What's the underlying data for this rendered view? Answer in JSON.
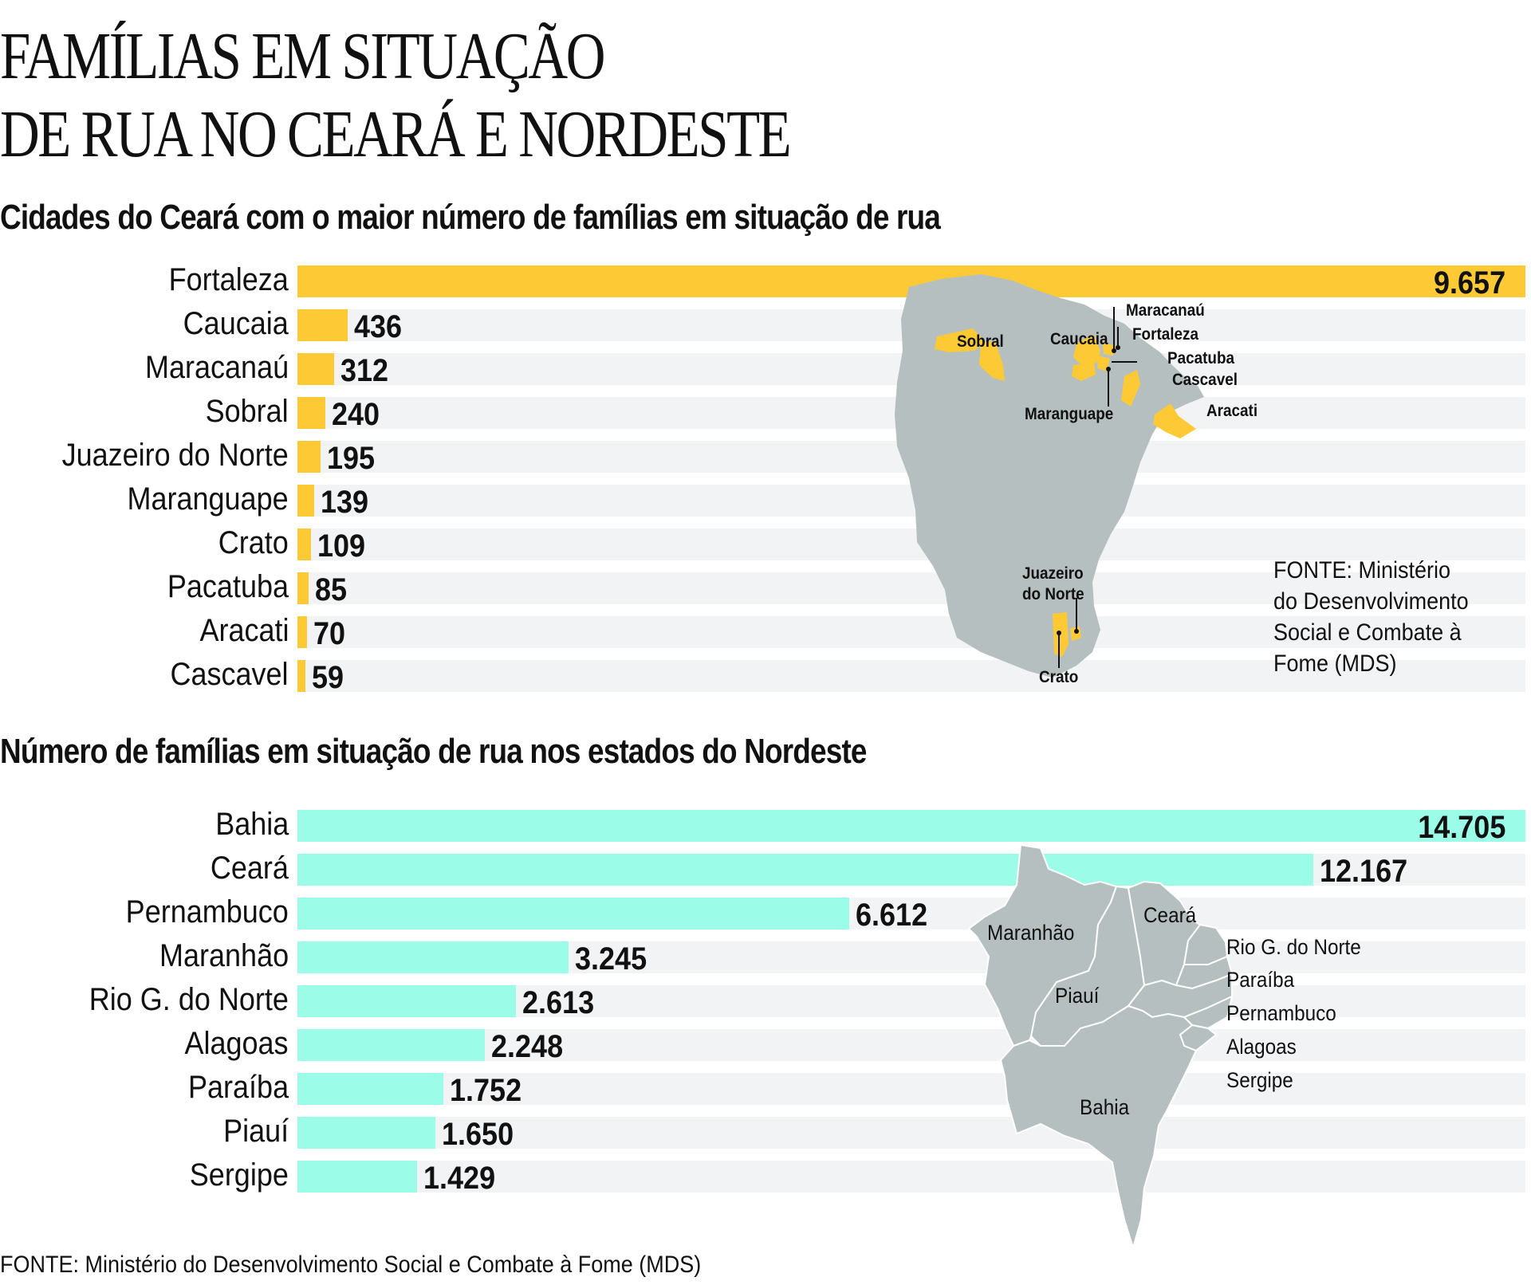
{
  "title_line1": "FAMÍLIAS EM SITUAÇÃO",
  "title_line2": "DE RUA NO CEARÁ E NORDESTE",
  "colors": {
    "cities": "#fdca35",
    "states": "#9bfce8",
    "stripe": "#f2f3f5",
    "map": "#b5bfbf"
  },
  "chart_data": [
    {
      "type": "bar",
      "orientation": "horizontal",
      "title": "Cidades do Ceará com o maior número de famílias em situação de rua",
      "categories": [
        "Fortaleza",
        "Caucaia",
        "Maracanaú",
        "Sobral",
        "Juazeiro do Norte",
        "Maranguape",
        "Crato",
        "Pacatuba",
        "Aracati",
        "Cascavel"
      ],
      "values": [
        9657,
        436,
        312,
        240,
        195,
        139,
        109,
        85,
        70,
        59
      ],
      "value_labels": [
        "9.657",
        "436",
        "312",
        "240",
        "195",
        "139",
        "109",
        "85",
        "70",
        "59"
      ],
      "xlabel": "",
      "ylabel": "",
      "grid": false,
      "source": "FONTE: Ministério do Desenvolvimento Social e Combate à Fome (MDS)"
    },
    {
      "type": "bar",
      "orientation": "horizontal",
      "title": "Número de famílias em situação de rua nos estados do Nordeste",
      "categories": [
        "Bahia",
        "Ceará",
        "Pernambuco",
        "Maranhão",
        "Rio G. do Norte",
        "Alagoas",
        "Paraíba",
        "Piauí",
        "Sergipe"
      ],
      "values": [
        14705,
        12167,
        6612,
        3245,
        2613,
        2248,
        1752,
        1650,
        1429
      ],
      "value_labels": [
        "14.705",
        "12.167",
        "6.612",
        "3.245",
        "2.613",
        "2.248",
        "1.752",
        "1.650",
        "1.429"
      ],
      "xlabel": "",
      "ylabel": "",
      "grid": false,
      "source": "FONTE: Ministério do Desenvolvimento Social e Combate à Fome (MDS)"
    }
  ],
  "ceara_map": {
    "labels": [
      "Sobral",
      "Caucaia",
      "Maracanaú",
      "Fortaleza",
      "Pacatuba",
      "Cascavel",
      "Maranguape",
      "Aracati",
      "Juazeiro",
      "do Norte",
      "Crato"
    ],
    "source_lines": [
      "FONTE: Ministério",
      "do Desenvolvimento",
      "Social e Combate à",
      "Fome (MDS)"
    ]
  },
  "nordeste_map": {
    "labels": [
      "Maranhão",
      "Ceará",
      "Rio G. do Norte",
      "Paraíba",
      "Piauí",
      "Pernambuco",
      "Alagoas",
      "Sergipe",
      "Bahia"
    ]
  },
  "footer": "FONTE: Ministério do Desenvolvimento Social e Combate à Fome (MDS)"
}
